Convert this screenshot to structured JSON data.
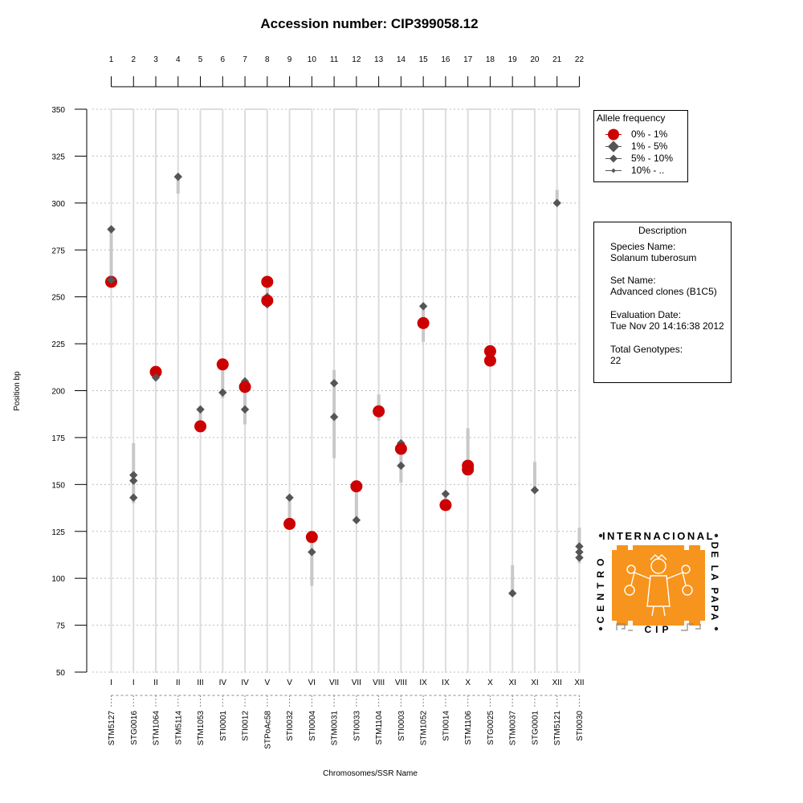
{
  "chart_data": {
    "type": "scatter",
    "title": "Accession number: CIP399058.12",
    "ylabel": "Position bp",
    "xlabel": "Chromosomes/SSR Name",
    "ylim": [
      50,
      350
    ],
    "yticks": [
      50,
      75,
      100,
      125,
      150,
      175,
      200,
      225,
      250,
      275,
      300,
      325,
      350
    ],
    "grid": true,
    "markers": [
      {
        "index": 1,
        "chromosome": "I",
        "ssr": "STM5127"
      },
      {
        "index": 2,
        "chromosome": "I",
        "ssr": "STG0016"
      },
      {
        "index": 3,
        "chromosome": "II",
        "ssr": "STM1064"
      },
      {
        "index": 4,
        "chromosome": "II",
        "ssr": "STM5114"
      },
      {
        "index": 5,
        "chromosome": "III",
        "ssr": "STM1053"
      },
      {
        "index": 6,
        "chromosome": "IV",
        "ssr": "STI0001"
      },
      {
        "index": 7,
        "chromosome": "IV",
        "ssr": "STI0012"
      },
      {
        "index": 8,
        "chromosome": "V",
        "ssr": "STPoAc58"
      },
      {
        "index": 9,
        "chromosome": "V",
        "ssr": "STI0032"
      },
      {
        "index": 10,
        "chromosome": "VI",
        "ssr": "STI0004"
      },
      {
        "index": 11,
        "chromosome": "VII",
        "ssr": "STM0031"
      },
      {
        "index": 12,
        "chromosome": "VII",
        "ssr": "STI0033"
      },
      {
        "index": 13,
        "chromosome": "VIII",
        "ssr": "STM1104"
      },
      {
        "index": 14,
        "chromosome": "VIII",
        "ssr": "STI0003"
      },
      {
        "index": 15,
        "chromosome": "IX",
        "ssr": "STM1052"
      },
      {
        "index": 16,
        "chromosome": "IX",
        "ssr": "STI0014"
      },
      {
        "index": 17,
        "chromosome": "X",
        "ssr": "STM1106"
      },
      {
        "index": 18,
        "chromosome": "X",
        "ssr": "STG0025"
      },
      {
        "index": 19,
        "chromosome": "XI",
        "ssr": "STM0037"
      },
      {
        "index": 20,
        "chromosome": "XI",
        "ssr": "STG0001"
      },
      {
        "index": 21,
        "chromosome": "XII",
        "ssr": "STM5121"
      },
      {
        "index": 22,
        "chromosome": "XII",
        "ssr": "STI0030"
      }
    ],
    "ranges": [
      [
        1,
        258,
        287
      ],
      [
        2,
        140,
        172
      ],
      [
        3,
        207,
        210
      ],
      [
        4,
        305,
        314
      ],
      [
        5,
        181,
        190
      ],
      [
        6,
        196,
        214
      ],
      [
        7,
        182,
        205
      ],
      [
        8,
        245,
        258
      ],
      [
        9,
        129,
        143
      ],
      [
        10,
        96,
        122
      ],
      [
        11,
        164,
        211
      ],
      [
        12,
        131,
        149
      ],
      [
        13,
        184,
        198
      ],
      [
        14,
        151,
        172
      ],
      [
        15,
        226,
        245
      ],
      [
        16,
        139,
        145
      ],
      [
        17,
        158,
        180
      ],
      [
        18,
        216,
        221
      ],
      [
        19,
        92,
        107
      ],
      [
        20,
        147,
        162
      ],
      [
        21,
        300,
        307
      ],
      [
        22,
        108,
        127
      ]
    ],
    "points": [
      {
        "x": 1,
        "y": 258,
        "cls": 0
      },
      {
        "x": 1,
        "y": 259,
        "cls": 1
      },
      {
        "x": 1,
        "y": 286,
        "cls": 1
      },
      {
        "x": 2,
        "y": 155,
        "cls": 1
      },
      {
        "x": 2,
        "y": 152,
        "cls": 1
      },
      {
        "x": 2,
        "y": 143,
        "cls": 1
      },
      {
        "x": 3,
        "y": 210,
        "cls": 0
      },
      {
        "x": 3,
        "y": 207,
        "cls": 1
      },
      {
        "x": 4,
        "y": 314,
        "cls": 1
      },
      {
        "x": 5,
        "y": 190,
        "cls": 1
      },
      {
        "x": 5,
        "y": 181,
        "cls": 0
      },
      {
        "x": 6,
        "y": 214,
        "cls": 0
      },
      {
        "x": 6,
        "y": 199,
        "cls": 1
      },
      {
        "x": 7,
        "y": 205,
        "cls": 1
      },
      {
        "x": 7,
        "y": 202,
        "cls": 0
      },
      {
        "x": 7,
        "y": 190,
        "cls": 1
      },
      {
        "x": 8,
        "y": 250,
        "cls": 1
      },
      {
        "x": 8,
        "y": 246,
        "cls": 1
      },
      {
        "x": 8,
        "y": 258,
        "cls": 0
      },
      {
        "x": 8,
        "y": 248,
        "cls": 0
      },
      {
        "x": 9,
        "y": 143,
        "cls": 1
      },
      {
        "x": 9,
        "y": 129,
        "cls": 0
      },
      {
        "x": 10,
        "y": 122,
        "cls": 0
      },
      {
        "x": 10,
        "y": 114,
        "cls": 1
      },
      {
        "x": 11,
        "y": 204,
        "cls": 1
      },
      {
        "x": 11,
        "y": 186,
        "cls": 1
      },
      {
        "x": 12,
        "y": 149,
        "cls": 0
      },
      {
        "x": 12,
        "y": 131,
        "cls": 1
      },
      {
        "x": 13,
        "y": 188,
        "cls": 1
      },
      {
        "x": 13,
        "y": 189,
        "cls": 0
      },
      {
        "x": 14,
        "y": 172,
        "cls": 1
      },
      {
        "x": 14,
        "y": 160,
        "cls": 1
      },
      {
        "x": 14,
        "y": 169,
        "cls": 0
      },
      {
        "x": 15,
        "y": 245,
        "cls": 1
      },
      {
        "x": 15,
        "y": 236,
        "cls": 0
      },
      {
        "x": 16,
        "y": 145,
        "cls": 1
      },
      {
        "x": 16,
        "y": 139,
        "cls": 0
      },
      {
        "x": 17,
        "y": 160,
        "cls": 0
      },
      {
        "x": 17,
        "y": 158,
        "cls": 0
      },
      {
        "x": 18,
        "y": 221,
        "cls": 0
      },
      {
        "x": 18,
        "y": 216,
        "cls": 0
      },
      {
        "x": 19,
        "y": 92,
        "cls": 1
      },
      {
        "x": 20,
        "y": 147,
        "cls": 1
      },
      {
        "x": 21,
        "y": 300,
        "cls": 1
      },
      {
        "x": 22,
        "y": 117,
        "cls": 1
      },
      {
        "x": 22,
        "y": 114,
        "cls": 1
      },
      {
        "x": 22,
        "y": 111,
        "cls": 1
      }
    ],
    "legend": {
      "title": "Allele frequency",
      "position": "top-right",
      "entries": [
        {
          "label": "0% - 1%",
          "color": "#cc0000"
        },
        {
          "label": "1% - 5%",
          "color": "#555555"
        },
        {
          "label": "5% - 10%",
          "color": "#555555"
        },
        {
          "label": "10% - ..",
          "color": "#555555"
        }
      ]
    }
  },
  "description": {
    "title": "Description",
    "species_label": "Species Name:",
    "species_value": "Solanum tuberosum",
    "set_label": "Set Name:",
    "set_value": "Advanced clones (B1C5)",
    "date_label": "Evaluation Date:",
    "date_value": "Tue Nov 20 14:16:38 2012",
    "genotypes_label": "Total Genotypes:",
    "genotypes_value": "22"
  },
  "logo": {
    "top_text": "INTERNACIONAL",
    "left_text": "CENTRO",
    "right_text": "DE LA PAPA",
    "bottom_text": "CIP",
    "background": "#f7941d"
  },
  "colors": {
    "red": "#cc0000",
    "dark": "#555555",
    "range": "#c8c8c8",
    "track": "#dcdcdc",
    "grid": "#bbbbbb"
  }
}
